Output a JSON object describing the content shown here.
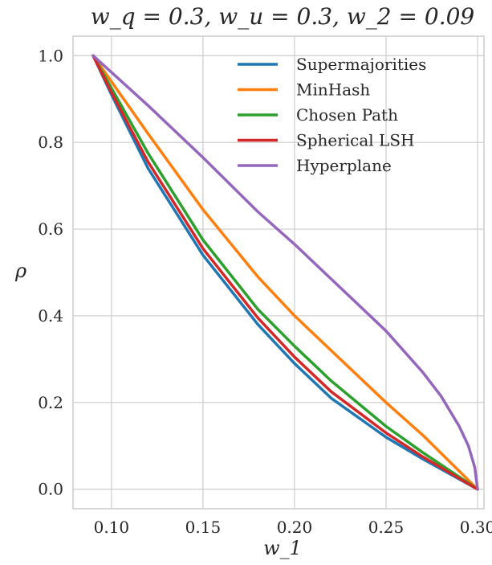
{
  "chart_data": {
    "type": "line",
    "title": "w_q = 0.3, w_u = 0.3, w_2 = 0.09",
    "xlabel": "w_1",
    "ylabel": "ρ",
    "xlim": [
      0.079,
      0.3035
    ],
    "ylim": [
      -0.045,
      1.045
    ],
    "x_ticks": [
      "0.10",
      "0.15",
      "0.20",
      "0.25",
      "0.30"
    ],
    "y_ticks": [
      "0.0",
      "0.2",
      "0.4",
      "0.6",
      "0.8",
      "1.0"
    ],
    "grid": true,
    "legend_position": "top-right",
    "series": [
      {
        "name": "Supermajorities",
        "color": "#1f77b4",
        "x": [
          0.09,
          0.1,
          0.12,
          0.15,
          0.18,
          0.2,
          0.22,
          0.25,
          0.27,
          0.3
        ],
        "y": [
          1.0,
          0.91,
          0.74,
          0.54,
          0.38,
          0.29,
          0.21,
          0.12,
          0.07,
          0.0
        ]
      },
      {
        "name": "MinHash",
        "color": "#ff7f0e",
        "x": [
          0.09,
          0.1,
          0.12,
          0.15,
          0.18,
          0.2,
          0.22,
          0.25,
          0.27,
          0.3
        ],
        "y": [
          1.0,
          0.94,
          0.82,
          0.645,
          0.49,
          0.4,
          0.32,
          0.2,
          0.125,
          0.0
        ]
      },
      {
        "name": "Chosen Path",
        "color": "#2ca02c",
        "x": [
          0.09,
          0.1,
          0.12,
          0.15,
          0.18,
          0.2,
          0.22,
          0.25,
          0.27,
          0.3
        ],
        "y": [
          1.0,
          0.925,
          0.775,
          0.575,
          0.415,
          0.33,
          0.25,
          0.145,
          0.085,
          0.0
        ]
      },
      {
        "name": "Spherical LSH",
        "color": "#d62728",
        "x": [
          0.09,
          0.1,
          0.12,
          0.15,
          0.18,
          0.2,
          0.22,
          0.25,
          0.27,
          0.3
        ],
        "y": [
          1.0,
          0.915,
          0.755,
          0.555,
          0.395,
          0.305,
          0.225,
          0.13,
          0.075,
          0.0
        ]
      },
      {
        "name": "Hyperplane",
        "color": "#9467bd",
        "x": [
          0.09,
          0.12,
          0.15,
          0.18,
          0.2,
          0.22,
          0.25,
          0.27,
          0.28,
          0.29,
          0.295,
          0.2985,
          0.3
        ],
        "y": [
          1.0,
          0.885,
          0.765,
          0.64,
          0.565,
          0.485,
          0.365,
          0.27,
          0.215,
          0.145,
          0.1,
          0.05,
          0.0
        ]
      }
    ]
  }
}
